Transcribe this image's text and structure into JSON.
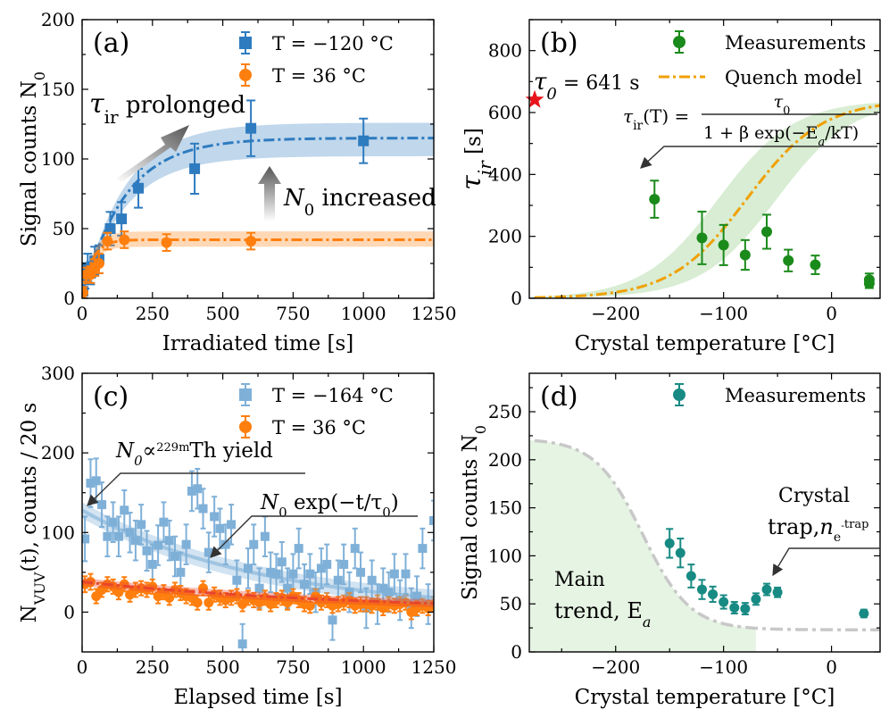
{
  "colors": {
    "blue": "#2e7bbf",
    "blue_light": "#7fb0d8",
    "orange": "#ff7f0e",
    "red_fit": "#e8452c",
    "green": "#1a8a1a",
    "green_band": "#c8e6c0",
    "quench": "#f0a000",
    "teal": "#188a84",
    "grey_trend": "#c8c8c8",
    "star": "#e8141c"
  },
  "chart_data": [
    {
      "id": "a",
      "type": "scatter",
      "panel_label": "(a)",
      "xlabel": "Irradiated time [s]",
      "ylabel": "Signal counts N",
      "ylabel_sub": "0",
      "xlim": [
        0,
        1250
      ],
      "ylim": [
        0,
        200
      ],
      "xticks": [
        0,
        250,
        500,
        750,
        1000,
        1250
      ],
      "yticks": [
        0,
        50,
        100,
        150,
        200
      ],
      "series": [
        {
          "name": "T = −120 °C",
          "marker": "square",
          "color": "blue",
          "x": [
            3,
            10,
            20,
            30,
            45,
            60,
            100,
            140,
            200,
            400,
            600,
            1000
          ],
          "y": [
            5,
            15,
            22,
            18,
            27,
            28,
            50,
            57,
            79,
            93,
            122,
            113
          ],
          "err": [
            5,
            8,
            10,
            8,
            10,
            10,
            12,
            12,
            14,
            18,
            20,
            16
          ],
          "fit": {
            "amplitude": 115,
            "tau": 150,
            "band_low": 102,
            "band_high": 126
          }
        },
        {
          "name": "T = 36 °C",
          "marker": "circle",
          "color": "orange",
          "x": [
            3,
            15,
            30,
            45,
            60,
            90,
            150,
            300,
            600
          ],
          "y": [
            4,
            17,
            17,
            22,
            25,
            41,
            42,
            40,
            41
          ],
          "err": [
            4,
            5,
            6,
            6,
            7,
            6,
            6,
            6,
            6
          ],
          "fit": {
            "amplitude": 42,
            "tau": 35,
            "band_low": 37,
            "band_high": 48
          }
        }
      ],
      "annotations": {
        "tau_prolonged": "prolonged",
        "tau_symbol": "τ",
        "tau_sub": "ir",
        "n0_increased": "increased",
        "n0_symbol": "N",
        "n0_sub": "0"
      }
    },
    {
      "id": "b",
      "type": "scatter",
      "panel_label": "(b)",
      "xlabel": "Crystal temperature [°C]",
      "ylabel": "τ",
      "ylabel_sub": "ir",
      "ylabel_unit": " [s]",
      "xlim": [
        -280,
        45
      ],
      "ylim": [
        0,
        900
      ],
      "xticks": [
        -200,
        -100,
        0
      ],
      "yticks": [
        0,
        200,
        400,
        600,
        800
      ],
      "series": [
        {
          "name": "Measurements",
          "marker": "circle",
          "color": "green",
          "x": [
            -164,
            -120,
            -100,
            -80,
            -60,
            -40,
            -15,
            35,
            35
          ],
          "y": [
            320,
            195,
            172,
            140,
            215,
            122,
            108,
            60,
            48
          ],
          "err": [
            60,
            85,
            65,
            48,
            55,
            35,
            30,
            20,
            15
          ]
        },
        {
          "name": "Quench model",
          "type": "line",
          "color": "quench",
          "style": "dash-dot",
          "tau0": 641,
          "a": 0.1066,
          "b": 0.0285
        }
      ],
      "band": {
        "tau0": 641,
        "low": {
          "a": 0.235,
          "b": 0.0285
        },
        "high": {
          "a": 0.05,
          "b": 0.0285
        }
      },
      "tau0_label": "= 641 s",
      "tau0_symbol": "τ",
      "tau0_sub": "0",
      "tau0_point": {
        "x": -275,
        "y": 641
      },
      "formula": {
        "lhs": "τ",
        "lhs_sub": "ir",
        "lhs_arg": "(T) =",
        "numerator": "τ",
        "numerator_sub": "0",
        "denominator": "1 + β exp(−E",
        "denominator_sub": "a",
        "denominator_end": "/kT)"
      }
    },
    {
      "id": "c",
      "type": "scatter",
      "panel_label": "(c)",
      "xlabel": "Elapsed time [s]",
      "ylabel": "N",
      "ylabel_sub": "VUV",
      "ylabel_rest": "(t), counts / 20 s",
      "xlim": [
        0,
        1250
      ],
      "ylim": [
        -50,
        300
      ],
      "xticks": [
        0,
        250,
        500,
        750,
        1000,
        1250
      ],
      "yticks": [
        0,
        100,
        200,
        300
      ],
      "series": [
        {
          "name": "T = −164 °C",
          "marker": "square",
          "color": "blue_light",
          "x": [
            10,
            30,
            50,
            70,
            90,
            110,
            130,
            150,
            170,
            190,
            210,
            230,
            250,
            270,
            290,
            310,
            330,
            350,
            370,
            390,
            410,
            430,
            450,
            470,
            490,
            510,
            530,
            550,
            570,
            590,
            610,
            630,
            650,
            670,
            690,
            710,
            730,
            750,
            770,
            790,
            810,
            830,
            850,
            870,
            890,
            910,
            930,
            950,
            970,
            990,
            1010,
            1030,
            1050,
            1070,
            1090,
            1110,
            1130,
            1150,
            1170,
            1190,
            1210,
            1230,
            1250
          ],
          "y": [
            92,
            162,
            165,
            135,
            95,
            113,
            95,
            128,
            100,
            90,
            110,
            77,
            60,
            84,
            113,
            90,
            70,
            50,
            85,
            152,
            155,
            130,
            75,
            120,
            105,
            85,
            110,
            40,
            -40,
            55,
            85,
            30,
            95,
            50,
            48,
            63,
            30,
            48,
            80,
            35,
            48,
            25,
            55,
            60,
            -10,
            40,
            60,
            25,
            80,
            50,
            5,
            40,
            10,
            30,
            25,
            48,
            15,
            48,
            5,
            20,
            80,
            10,
            115
          ],
          "err": [
            28,
            30,
            28,
            28,
            25,
            25,
            25,
            25,
            25,
            25,
            25,
            25,
            25,
            25,
            25,
            25,
            25,
            25,
            25,
            25,
            25,
            25,
            25,
            25,
            25,
            25,
            25,
            25,
            25,
            25,
            25,
            25,
            25,
            25,
            25,
            25,
            25,
            25,
            25,
            25,
            25,
            25,
            25,
            25,
            25,
            25,
            25,
            25,
            25,
            25,
            25,
            25,
            25,
            25,
            25,
            25,
            25,
            25,
            25,
            25,
            25,
            25,
            25
          ],
          "fit": {
            "n0": 128,
            "tau": 641,
            "band": 10
          }
        },
        {
          "name": "T = 36 °C",
          "marker": "circle",
          "color": "orange",
          "x": [
            10,
            30,
            50,
            70,
            90,
            110,
            130,
            150,
            170,
            190,
            210,
            230,
            250,
            270,
            290,
            310,
            330,
            350,
            370,
            390,
            410,
            430,
            450,
            470,
            490,
            510,
            530,
            550,
            570,
            590,
            610,
            630,
            650,
            670,
            690,
            710,
            730,
            750,
            770,
            790,
            810,
            830,
            850,
            870,
            890,
            910,
            930,
            950,
            970,
            990,
            1010,
            1030,
            1050,
            1070,
            1090,
            1110,
            1130,
            1150,
            1170,
            1190,
            1210,
            1230,
            1250
          ],
          "y": [
            35,
            38,
            20,
            28,
            35,
            32,
            25,
            35,
            22,
            28,
            30,
            28,
            32,
            20,
            25,
            18,
            28,
            24,
            20,
            18,
            12,
            30,
            12,
            22,
            18,
            15,
            18,
            20,
            10,
            18,
            15,
            12,
            18,
            10,
            15,
            18,
            12,
            20,
            15,
            10,
            8,
            20,
            12,
            15,
            8,
            10,
            12,
            15,
            8,
            10,
            10,
            8,
            12,
            5,
            10,
            8,
            10,
            12,
            0,
            5,
            8,
            5,
            10
          ],
          "err": [
            10,
            10,
            9,
            9,
            9,
            9,
            9,
            9,
            9,
            9,
            9,
            9,
            9,
            9,
            9,
            9,
            9,
            9,
            9,
            9,
            9,
            9,
            9,
            9,
            9,
            9,
            9,
            9,
            9,
            9,
            9,
            9,
            9,
            9,
            9,
            9,
            9,
            9,
            9,
            9,
            9,
            9,
            9,
            9,
            9,
            9,
            9,
            9,
            9,
            9,
            9,
            9,
            9,
            9,
            9,
            9,
            9,
            9,
            9,
            9,
            9,
            9,
            9
          ],
          "fit": {
            "n0": 38,
            "tau": 1000,
            "band": 5
          }
        }
      ],
      "annotations": {
        "yield_lhs": "N",
        "yield_lhs_sub": "0",
        "yield_prop": "∝",
        "yield_sup": "229m",
        "yield_rest": "Th yield",
        "decay_n": "N",
        "decay_n_sub": "0",
        "decay_exp": " exp(−t/τ",
        "decay_tau_sub": "0",
        "decay_close": ")"
      }
    },
    {
      "id": "d",
      "type": "scatter",
      "panel_label": "(d)",
      "xlabel": "Crystal temperature [°C]",
      "ylabel": "Signal counts N",
      "ylabel_sub": "0",
      "xlim": [
        -280,
        45
      ],
      "ylim": [
        0,
        290
      ],
      "xticks": [
        -200,
        -100,
        0
      ],
      "yticks": [
        0,
        50,
        100,
        150,
        200,
        250
      ],
      "series": [
        {
          "name": "Measurements",
          "marker": "circle",
          "color": "teal",
          "x": [
            -150,
            -140,
            -130,
            -120,
            -110,
            -100,
            -90,
            -80,
            -70,
            -60,
            -50,
            30
          ],
          "y": [
            113,
            103,
            79,
            65,
            60,
            52,
            46,
            45,
            55,
            65,
            62,
            40
          ],
          "err": [
            15,
            15,
            12,
            10,
            8,
            7,
            6,
            6,
            6,
            6,
            5,
            4
          ]
        }
      ],
      "trend": {
        "high": 222,
        "low": 23,
        "center": -175,
        "width": 22
      },
      "annotations": {
        "main_line1": "Main",
        "main_line2": "trend, E",
        "main_sub": "a",
        "trap_line1": "Crystal",
        "trap_line2": "trap,",
        "trap_n": "n",
        "trap_sub": "e",
        "trap_sub_sup": "-",
        "trap_sup": "trap"
      }
    }
  ]
}
